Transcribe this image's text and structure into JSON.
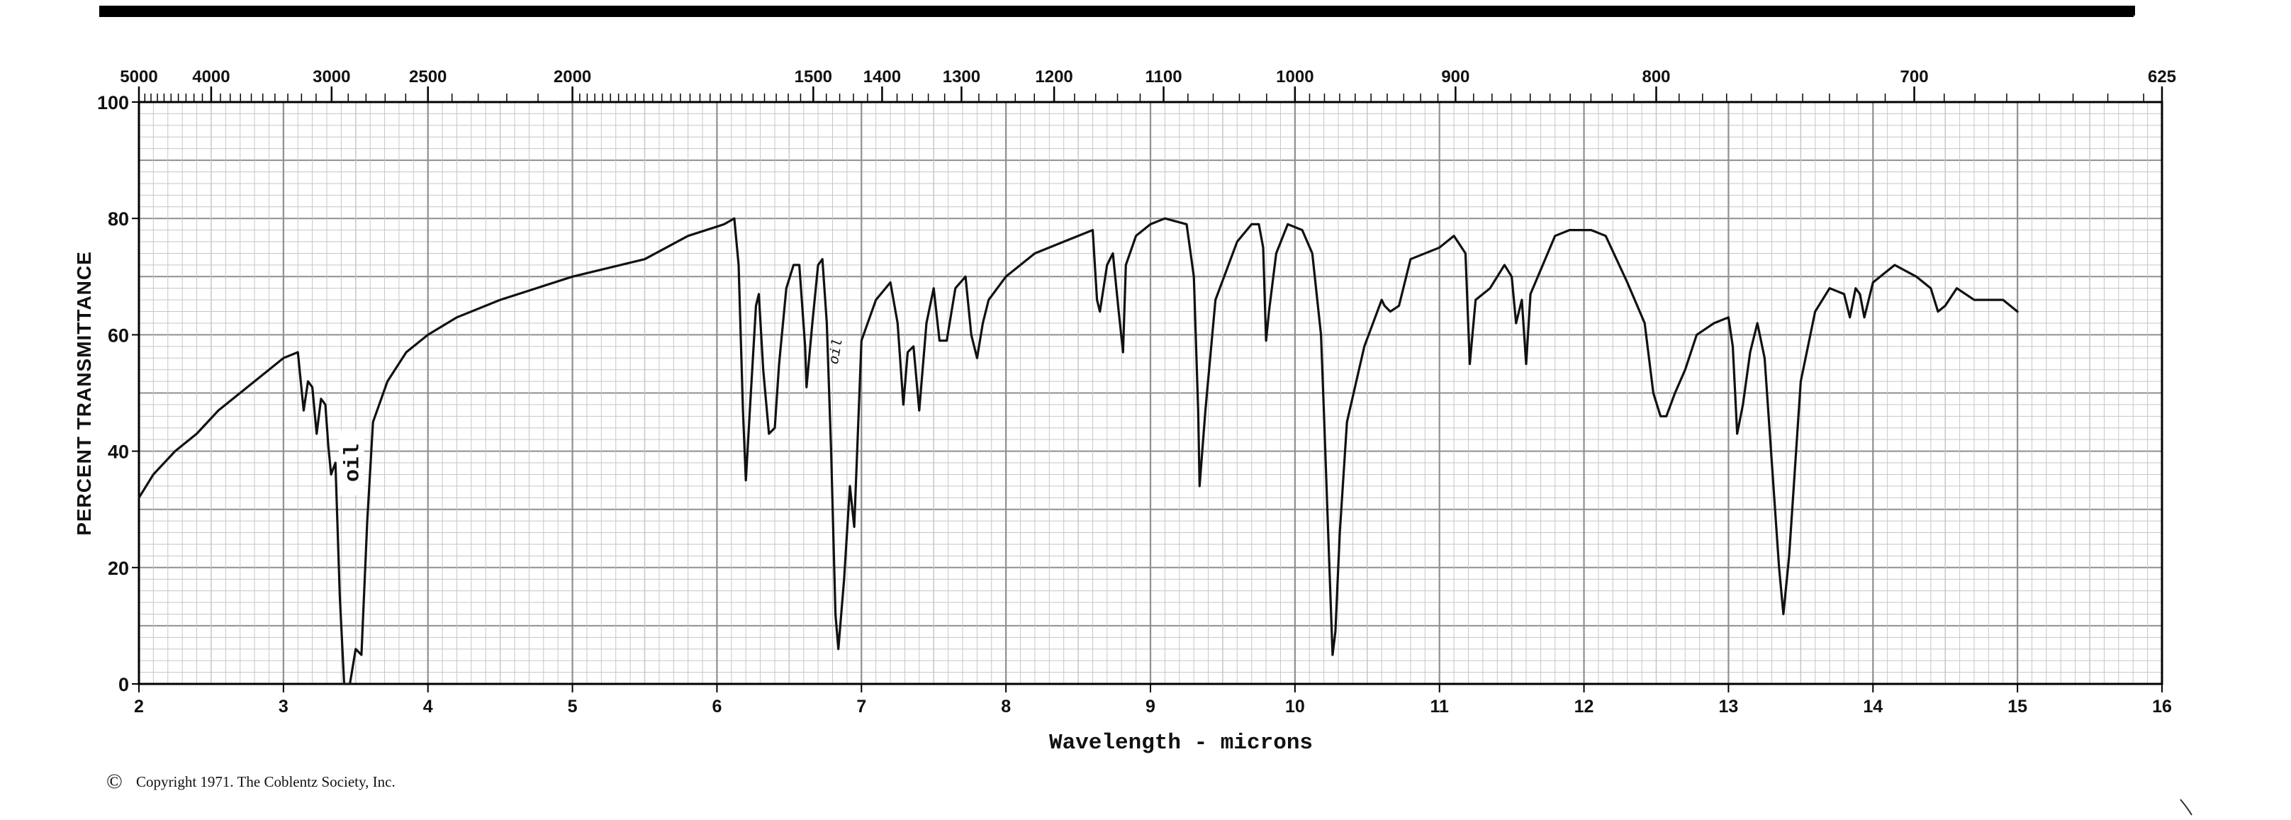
{
  "chart_data": {
    "type": "line",
    "xlabel": "Wavelength - microns",
    "ylabel": "PERCENT TRANSMITTANCE",
    "xlim": [
      2,
      16
    ],
    "ylim": [
      0,
      100
    ],
    "x_ticks": [
      "2",
      "3",
      "4",
      "5",
      "6",
      "7",
      "8",
      "9",
      "10",
      "11",
      "12",
      "13",
      "14",
      "15",
      "16"
    ],
    "y_ticks": [
      "0",
      "20",
      "40",
      "60",
      "80",
      "100"
    ],
    "top_axis_ticks": [
      {
        "label": "5000",
        "wavenumber": 5000
      },
      {
        "label": "4000",
        "wavenumber": 4000
      },
      {
        "label": "3000",
        "wavenumber": 3000
      },
      {
        "label": "2500",
        "wavenumber": 2500
      },
      {
        "label": "2000",
        "wavenumber": 2000
      },
      {
        "label": "1500",
        "wavenumber": 1500
      },
      {
        "label": "1400",
        "wavenumber": 1400
      },
      {
        "label": "1300",
        "wavenumber": 1300
      },
      {
        "label": "1200",
        "wavenumber": 1200
      },
      {
        "label": "1100",
        "wavenumber": 1100
      },
      {
        "label": "1000",
        "wavenumber": 1000
      },
      {
        "label": "900",
        "wavenumber": 900
      },
      {
        "label": "800",
        "wavenumber": 800
      },
      {
        "label": "700",
        "wavenumber": 700
      },
      {
        "label": "625",
        "wavenumber": 625
      }
    ],
    "grid": true,
    "annotations": [
      {
        "text": "oil",
        "x": 3.47,
        "y": 38
      },
      {
        "text": "oil",
        "x": 6.85,
        "y": 57
      }
    ],
    "series": [
      {
        "points": [
          [
            2.0,
            32
          ],
          [
            2.1,
            36
          ],
          [
            2.25,
            40
          ],
          [
            2.4,
            43
          ],
          [
            2.55,
            47
          ],
          [
            2.7,
            50
          ],
          [
            2.85,
            53
          ],
          [
            3.0,
            56
          ],
          [
            3.1,
            57
          ],
          [
            3.12,
            52
          ],
          [
            3.14,
            47
          ],
          [
            3.17,
            52
          ],
          [
            3.2,
            51
          ],
          [
            3.23,
            43
          ],
          [
            3.26,
            49
          ],
          [
            3.29,
            48
          ],
          [
            3.31,
            41
          ],
          [
            3.33,
            36
          ],
          [
            3.36,
            38
          ],
          [
            3.39,
            15
          ],
          [
            3.42,
            0
          ],
          [
            3.46,
            0
          ],
          [
            3.5,
            6
          ],
          [
            3.54,
            5
          ],
          [
            3.58,
            28
          ],
          [
            3.62,
            45
          ],
          [
            3.72,
            52
          ],
          [
            3.85,
            57
          ],
          [
            4.0,
            60
          ],
          [
            4.2,
            63
          ],
          [
            4.5,
            66
          ],
          [
            5.0,
            70
          ],
          [
            5.5,
            73
          ],
          [
            5.8,
            77
          ],
          [
            6.05,
            79
          ],
          [
            6.12,
            80
          ],
          [
            6.15,
            72
          ],
          [
            6.18,
            47
          ],
          [
            6.2,
            35
          ],
          [
            6.23,
            48
          ],
          [
            6.27,
            65
          ],
          [
            6.29,
            67
          ],
          [
            6.32,
            54
          ],
          [
            6.36,
            43
          ],
          [
            6.4,
            44
          ],
          [
            6.43,
            55
          ],
          [
            6.48,
            68
          ],
          [
            6.53,
            72
          ],
          [
            6.57,
            72
          ],
          [
            6.61,
            58
          ],
          [
            6.62,
            51
          ],
          [
            6.66,
            62
          ],
          [
            6.7,
            72
          ],
          [
            6.73,
            73
          ],
          [
            6.76,
            62
          ],
          [
            6.79,
            40
          ],
          [
            6.82,
            12
          ],
          [
            6.84,
            6
          ],
          [
            6.88,
            18
          ],
          [
            6.92,
            34
          ],
          [
            6.95,
            27
          ],
          [
            7.0,
            59
          ],
          [
            7.1,
            66
          ],
          [
            7.2,
            69
          ],
          [
            7.25,
            62
          ],
          [
            7.29,
            48
          ],
          [
            7.32,
            57
          ],
          [
            7.36,
            58
          ],
          [
            7.4,
            47
          ],
          [
            7.45,
            62
          ],
          [
            7.5,
            68
          ],
          [
            7.54,
            59
          ],
          [
            7.59,
            59
          ],
          [
            7.65,
            68
          ],
          [
            7.72,
            70
          ],
          [
            7.76,
            60
          ],
          [
            7.8,
            56
          ],
          [
            7.84,
            62
          ],
          [
            7.88,
            66
          ],
          [
            7.94,
            68
          ],
          [
            8.0,
            70
          ],
          [
            8.1,
            72
          ],
          [
            8.2,
            74
          ],
          [
            8.4,
            76
          ],
          [
            8.6,
            78
          ],
          [
            8.63,
            66
          ],
          [
            8.65,
            64
          ],
          [
            8.7,
            72
          ],
          [
            8.74,
            74
          ],
          [
            8.78,
            64
          ],
          [
            8.81,
            57
          ],
          [
            8.83,
            72
          ],
          [
            8.9,
            77
          ],
          [
            9.0,
            79
          ],
          [
            9.1,
            80
          ],
          [
            9.25,
            79
          ],
          [
            9.3,
            70
          ],
          [
            9.33,
            47
          ],
          [
            9.34,
            34
          ],
          [
            9.38,
            47
          ],
          [
            9.45,
            66
          ],
          [
            9.6,
            76
          ],
          [
            9.7,
            79
          ],
          [
            9.75,
            79
          ],
          [
            9.78,
            75
          ],
          [
            9.8,
            59
          ],
          [
            9.82,
            64
          ],
          [
            9.87,
            74
          ],
          [
            9.95,
            79
          ],
          [
            10.05,
            78
          ],
          [
            10.12,
            74
          ],
          [
            10.18,
            60
          ],
          [
            10.2,
            47
          ],
          [
            10.23,
            26
          ],
          [
            10.26,
            5
          ],
          [
            10.28,
            9
          ],
          [
            10.31,
            26
          ],
          [
            10.36,
            45
          ],
          [
            10.48,
            58
          ],
          [
            10.6,
            66
          ],
          [
            10.62,
            65
          ],
          [
            10.66,
            64
          ],
          [
            10.72,
            65
          ],
          [
            10.8,
            73
          ],
          [
            11.0,
            75
          ],
          [
            11.1,
            77
          ],
          [
            11.18,
            74
          ],
          [
            11.21,
            55
          ],
          [
            11.25,
            66
          ],
          [
            11.35,
            68
          ],
          [
            11.45,
            72
          ],
          [
            11.5,
            70
          ],
          [
            11.53,
            62
          ],
          [
            11.57,
            66
          ],
          [
            11.6,
            55
          ],
          [
            11.63,
            67
          ],
          [
            11.8,
            77
          ],
          [
            11.9,
            78
          ],
          [
            12.05,
            78
          ],
          [
            12.15,
            77
          ],
          [
            12.3,
            69
          ],
          [
            12.42,
            62
          ],
          [
            12.48,
            50
          ],
          [
            12.53,
            46
          ],
          [
            12.57,
            46
          ],
          [
            12.63,
            50
          ],
          [
            12.7,
            54
          ],
          [
            12.78,
            60
          ],
          [
            12.9,
            62
          ],
          [
            13.0,
            63
          ],
          [
            13.03,
            58
          ],
          [
            13.06,
            43
          ],
          [
            13.1,
            48
          ],
          [
            13.15,
            57
          ],
          [
            13.2,
            62
          ],
          [
            13.25,
            56
          ],
          [
            13.3,
            38
          ],
          [
            13.35,
            20
          ],
          [
            13.38,
            12
          ],
          [
            13.42,
            22
          ],
          [
            13.5,
            52
          ],
          [
            13.6,
            64
          ],
          [
            13.7,
            68
          ],
          [
            13.8,
            67
          ],
          [
            13.84,
            63
          ],
          [
            13.88,
            68
          ],
          [
            13.91,
            67
          ],
          [
            13.94,
            63
          ],
          [
            14.0,
            69
          ],
          [
            14.15,
            72
          ],
          [
            14.3,
            70
          ],
          [
            14.4,
            68
          ],
          [
            14.45,
            64
          ],
          [
            14.5,
            65
          ],
          [
            14.58,
            68
          ],
          [
            14.7,
            66
          ],
          [
            14.8,
            66
          ],
          [
            14.9,
            66
          ],
          [
            15.0,
            64
          ]
        ]
      }
    ]
  },
  "footer": {
    "copyright_symbol": "©",
    "copyright_text": "Copyright 1971.  The Coblentz Society, Inc."
  },
  "colors": {
    "grid": "#8f8f8f",
    "grid_minor": "#c6c6c6",
    "trace": "#111111",
    "frame": "#000000"
  }
}
